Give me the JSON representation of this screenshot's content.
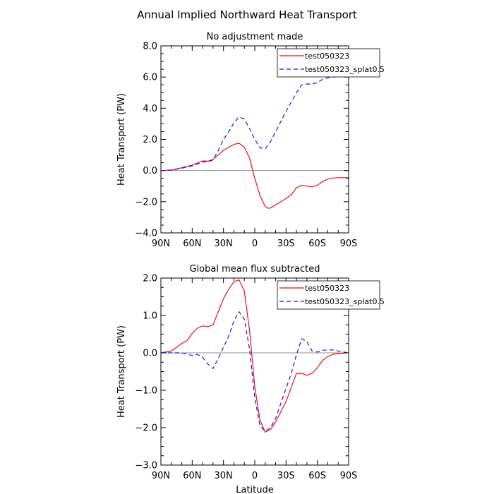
{
  "figure_title": "Annual Implied Northward Heat Transport",
  "colors": {
    "series1": "#e8101a",
    "series2": "#1a1ad8",
    "zero_line": "#909090",
    "frame": "#000000"
  },
  "chart_data": [
    {
      "type": "line",
      "title": "No adjustment made",
      "xlabel": "",
      "ylabel": "Heat Transport (PW)",
      "x_ticks": [
        90,
        60,
        30,
        0,
        -30,
        -60,
        -90
      ],
      "x_tick_labels": [
        "90N",
        "60N",
        "30N",
        "0",
        "30S",
        "60S",
        "90S"
      ],
      "xlim": [
        90,
        -90
      ],
      "y_ticks": [
        -4,
        -2,
        0,
        2,
        4,
        6,
        8
      ],
      "y_tick_labels": [
        "-4.0",
        "-2.0",
        "0.0",
        "2.0",
        "4.0",
        "6.0",
        "8.0"
      ],
      "ylim": [
        -4,
        8
      ],
      "zero_line": true,
      "legend": [
        "test050323",
        "test050323_splat0.5"
      ],
      "legend_position": "top-right",
      "series": [
        {
          "name": "test050323",
          "style": "solid",
          "x": [
            90,
            80,
            70,
            60,
            50,
            45,
            40,
            35,
            30,
            20,
            15,
            10,
            5,
            0,
            -5,
            -10,
            -13,
            -15,
            -20,
            -30,
            -35,
            -40,
            -45,
            -50,
            -55,
            -60,
            -65,
            -70,
            -75,
            -80,
            -90
          ],
          "y": [
            0.0,
            0.03,
            0.18,
            0.35,
            0.62,
            0.6,
            0.72,
            1.0,
            1.3,
            1.68,
            1.75,
            1.5,
            0.8,
            -0.5,
            -1.6,
            -2.3,
            -2.42,
            -2.4,
            -2.2,
            -1.8,
            -1.55,
            -1.1,
            -0.95,
            -1.0,
            -1.05,
            -0.95,
            -0.7,
            -0.55,
            -0.48,
            -0.46,
            -0.46
          ]
        },
        {
          "name": "test050323_splat0.5",
          "style": "dashed",
          "x": [
            90,
            80,
            70,
            60,
            50,
            45,
            40,
            35,
            30,
            25,
            20,
            15,
            10,
            5,
            0,
            -5,
            -10,
            -15,
            -20,
            -30,
            -40,
            -45,
            -50,
            -55,
            -60,
            -65,
            -70,
            -75,
            -80,
            -90
          ],
          "y": [
            0.0,
            0.03,
            0.15,
            0.3,
            0.55,
            0.55,
            0.68,
            1.3,
            2.0,
            2.5,
            3.05,
            3.45,
            3.3,
            2.7,
            2.0,
            1.45,
            1.4,
            1.85,
            2.5,
            3.8,
            5.0,
            5.5,
            5.55,
            5.55,
            5.65,
            5.85,
            5.95,
            6.0,
            6.02,
            6.02
          ]
        }
      ]
    },
    {
      "type": "line",
      "title": "Global mean flux subtracted",
      "xlabel": "Latitude",
      "ylabel": "Heat Transport (PW)",
      "x_ticks": [
        90,
        60,
        30,
        0,
        -30,
        -60,
        -90
      ],
      "x_tick_labels": [
        "90N",
        "60N",
        "30N",
        "0",
        "30S",
        "60S",
        "90S"
      ],
      "xlim": [
        90,
        -90
      ],
      "y_ticks": [
        -3,
        -2,
        -1,
        0,
        1,
        2
      ],
      "y_tick_labels": [
        "-3.0",
        "-2.0",
        "-1.0",
        "0.0",
        "1.0",
        "2.0"
      ],
      "ylim": [
        -3,
        2
      ],
      "zero_line": true,
      "legend": [
        "test050323",
        "test050323_splat0.5"
      ],
      "legend_position": "top-right",
      "series": [
        {
          "name": "test050323",
          "style": "solid",
          "x": [
            90,
            80,
            70,
            65,
            60,
            55,
            50,
            45,
            40,
            35,
            30,
            25,
            20,
            15,
            10,
            5,
            0,
            -5,
            -10,
            -15,
            -20,
            -30,
            -40,
            -45,
            -50,
            -55,
            -60,
            -65,
            -70,
            -75,
            -80,
            -85,
            -90
          ],
          "y": [
            0.0,
            0.05,
            0.25,
            0.32,
            0.52,
            0.66,
            0.72,
            0.7,
            0.75,
            1.1,
            1.45,
            1.7,
            1.9,
            1.95,
            1.65,
            0.6,
            -0.9,
            -1.8,
            -2.12,
            -2.05,
            -1.85,
            -1.3,
            -0.55,
            -0.55,
            -0.6,
            -0.55,
            -0.4,
            -0.2,
            -0.1,
            -0.04,
            -0.02,
            -0.01,
            0.0
          ]
        },
        {
          "name": "test050323_splat0.5",
          "style": "dashed",
          "x": [
            90,
            80,
            70,
            60,
            55,
            50,
            45,
            40,
            35,
            30,
            25,
            20,
            15,
            10,
            5,
            0,
            -5,
            -10,
            -15,
            -20,
            -30,
            -35,
            -40,
            -45,
            -50,
            -55,
            -60,
            -65,
            -70,
            -75,
            -80,
            -90
          ],
          "y": [
            0.0,
            0.0,
            0.0,
            -0.07,
            -0.04,
            -0.12,
            -0.3,
            -0.42,
            -0.15,
            0.15,
            0.45,
            0.85,
            1.1,
            0.9,
            0.1,
            -1.2,
            -1.95,
            -2.1,
            -2.0,
            -1.75,
            -0.95,
            -0.55,
            -0.05,
            0.38,
            0.3,
            0.05,
            0.02,
            0.07,
            0.08,
            0.08,
            0.05,
            0.0
          ]
        }
      ]
    }
  ]
}
